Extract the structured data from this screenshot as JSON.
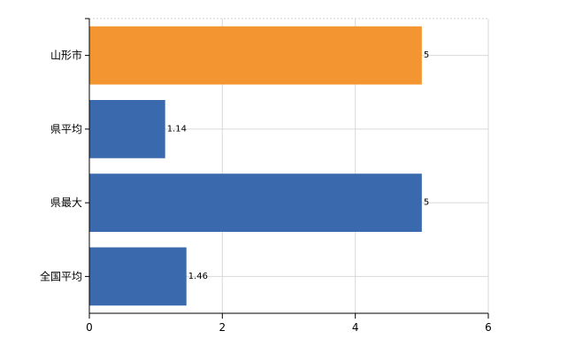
{
  "chart_data": {
    "type": "bar",
    "orientation": "horizontal",
    "title": "",
    "xlabel": "",
    "ylabel": "",
    "categories": [
      "山形市",
      "県平均",
      "県最大",
      "全国平均"
    ],
    "values": [
      5,
      1.14,
      5,
      1.46
    ],
    "value_labels": [
      "5",
      "1.14",
      "5",
      "1.46"
    ],
    "bar_colors": [
      "#f39530",
      "#3a6aad",
      "#3a6aad",
      "#3a6aad"
    ],
    "xlim": [
      0,
      6
    ],
    "x_ticks": [
      0,
      2,
      4,
      6
    ],
    "x_tick_labels": [
      "0",
      "2",
      "4",
      "6"
    ],
    "grid": true
  }
}
